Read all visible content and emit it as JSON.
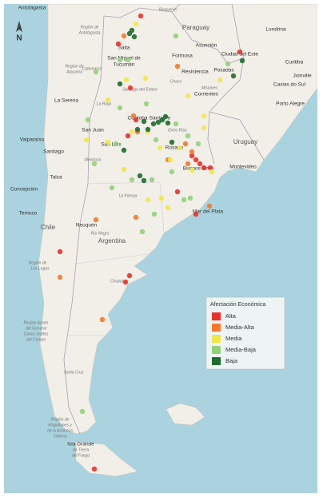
{
  "map": {
    "north_label": "N",
    "labels": [
      "Antofagasta",
      "Paraguay",
      "Asunción",
      "Formosa",
      "Resistencia",
      "Corrientes",
      "Posadas",
      "Ciudad del Este",
      "Londrina",
      "Curitiba",
      "Joinville",
      "Caxias do Sul",
      "Porto Alegre",
      "Uruguay",
      "Montevideo",
      "Buenos Aires",
      "Mar del Plata",
      "Rosario",
      "Santa Fe",
      "Córdoba",
      "San Luis",
      "San Juan",
      "Mendoza",
      "La Pampa",
      "Neuquén",
      "Argentina",
      "Río Negro",
      "Chubut",
      "Santa Cruz",
      "Chile",
      "Santiago",
      "Valparaíso",
      "Talca",
      "Concepción",
      "Temuco",
      "La Serena",
      "Salta",
      "San Miguel de",
      "Tucumán",
      "Catamarca",
      "La Rioja",
      "Entre Ríos",
      "Región de",
      "Los Lagos",
      "Región Aysén",
      "del General",
      "Carlos Ibáñez",
      "del Campo",
      "Región de",
      "Magallanes y",
      "de la Antártica",
      "Chilena",
      "Isla Grande",
      "de Tierra",
      "del Fuego",
      "Región de",
      "Antofagasta",
      "Región de",
      "Atacama",
      "Bioquerón",
      "Chaco",
      "Santiago del Estero",
      "Misiones"
    ],
    "legend": {
      "title": "Afectación Económica",
      "items": [
        {
          "name": "Alta",
          "color": "#e8302c"
        },
        {
          "name": "Media-Alta",
          "color": "#f07b2e"
        },
        {
          "name": "Media",
          "color": "#eee84a"
        },
        {
          "name": "Media-Baja",
          "color": "#94d07b"
        },
        {
          "name": "Baja",
          "color": "#1d6b2e"
        }
      ]
    }
  }
}
